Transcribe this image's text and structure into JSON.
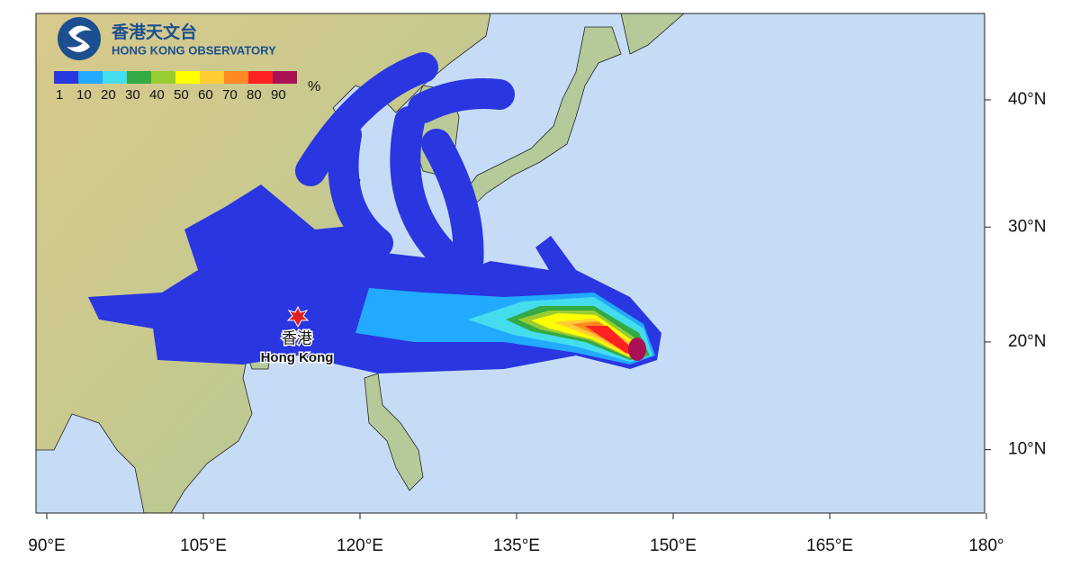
{
  "header": {
    "title_zh": "香港天文台",
    "title_en": "HONG KONG OBSERVATORY"
  },
  "legend": {
    "labels": [
      1,
      10,
      20,
      30,
      40,
      50,
      60,
      70,
      80,
      90
    ],
    "unit": "%"
  },
  "place": {
    "name_zh": "香港",
    "name_en": "Hong Kong"
  },
  "axes": {
    "x_ticks": [
      {
        "value": 90,
        "label": "90°E"
      },
      {
        "value": 105,
        "label": "105°E"
      },
      {
        "value": 120,
        "label": "120°E"
      },
      {
        "value": 135,
        "label": "135°E"
      },
      {
        "value": 150,
        "label": "150°E"
      },
      {
        "value": 165,
        "label": "165°E"
      },
      {
        "value": 180,
        "label": "180°"
      }
    ],
    "y_ticks": [
      {
        "value": 40,
        "label": "40°N"
      },
      {
        "value": 30,
        "label": "30°N"
      },
      {
        "value": 20,
        "label": "20°N"
      },
      {
        "value": 10,
        "label": "10°N"
      }
    ]
  }
}
